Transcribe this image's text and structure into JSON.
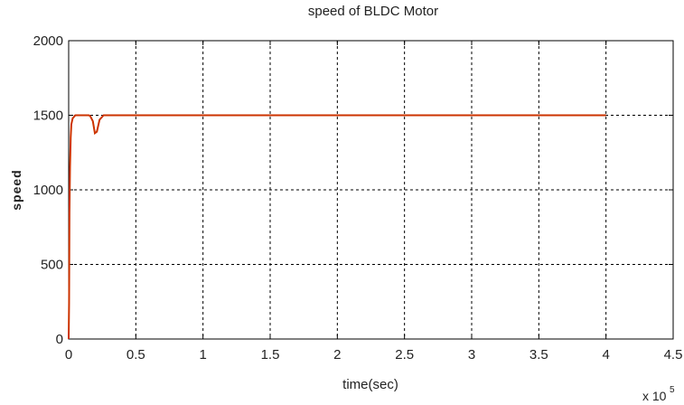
{
  "chart_data": {
    "type": "line",
    "title": "speed of BLDC Motor",
    "xlabel": "time(sec)",
    "ylabel": "speed",
    "x_multiplier_base": "x 10",
    "x_multiplier_exp": "5",
    "xlim": [
      0,
      4.5
    ],
    "ylim": [
      0,
      2000
    ],
    "x_ticks": [
      0,
      0.5,
      1,
      1.5,
      2,
      2.5,
      3,
      3.5,
      4,
      4.5
    ],
    "x_tick_labels": [
      "0",
      "0.5",
      "1",
      "1.5",
      "2",
      "2.5",
      "3",
      "3.5",
      "4",
      "4.5"
    ],
    "y_ticks": [
      0,
      500,
      1000,
      1500,
      2000
    ],
    "y_tick_labels": [
      "0",
      "500",
      "1000",
      "1500",
      "2000"
    ],
    "grid": true,
    "line_color": "#cc3300",
    "series": [
      {
        "x": [
          0,
          0.003,
          0.006,
          0.01,
          0.015,
          0.02,
          0.03,
          0.05,
          0.08,
          0.12,
          0.15,
          0.16,
          0.18,
          0.195,
          0.21,
          0.23,
          0.26,
          0.5,
          1,
          2,
          3,
          4
        ],
        "y": [
          0,
          240,
          850,
          1150,
          1350,
          1440,
          1480,
          1500,
          1500,
          1500,
          1500,
          1495,
          1460,
          1380,
          1390,
          1470,
          1500,
          1500,
          1500,
          1500,
          1500,
          1500
        ]
      }
    ]
  }
}
